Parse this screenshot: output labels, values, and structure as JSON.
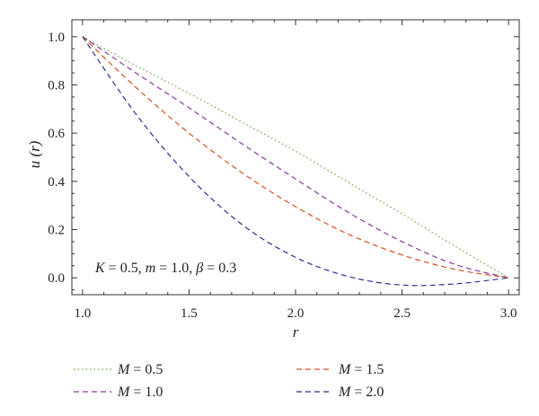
{
  "chart_data": {
    "type": "line",
    "xlabel": "r",
    "ylabel": "u (r)",
    "xlim": [
      0.95,
      3.05
    ],
    "ylim": [
      -0.07,
      1.07
    ],
    "xticks": [
      "1.0",
      "1.5",
      "2.0",
      "2.5",
      "3.0"
    ],
    "yticks": [
      "0.0",
      "0.2",
      "0.4",
      "0.6",
      "0.8",
      "1.0"
    ],
    "grid": false,
    "legend_placement": "bottom",
    "annotation": {
      "K_symbol": "K",
      "K_value": " = 0.5, ",
      "m_symbol": "m",
      "m_value": " = 1.0, ",
      "beta_symbol": "β",
      "beta_value": " = 0.3"
    },
    "series": [
      {
        "name": "M = 0.5",
        "symbol": "M",
        "value_label": " = 0.5",
        "color": "#6aaa3a",
        "dash": "dotted",
        "x": [
          1.0,
          1.25,
          1.5,
          1.75,
          2.0,
          2.25,
          2.5,
          2.75,
          3.0
        ],
        "y": [
          1.0,
          0.88,
          0.765,
          0.645,
          0.525,
          0.395,
          0.265,
          0.13,
          0.0
        ]
      },
      {
        "name": "M = 1.0",
        "symbol": "M",
        "value_label": " = 1.0",
        "color": "#8b3a9e",
        "dash": "dashed",
        "x": [
          1.0,
          1.25,
          1.5,
          1.75,
          2.0,
          2.25,
          2.5,
          2.75,
          3.0
        ],
        "y": [
          1.0,
          0.85,
          0.705,
          0.555,
          0.41,
          0.27,
          0.15,
          0.055,
          0.0
        ]
      },
      {
        "name": "M = 1.5",
        "symbol": "M",
        "value_label": " = 1.5",
        "color": "#d4501e",
        "dash": "dashed",
        "x": [
          1.0,
          1.25,
          1.5,
          1.75,
          2.0,
          2.25,
          2.5,
          2.75,
          3.0
        ],
        "y": [
          1.0,
          0.79,
          0.6,
          0.435,
          0.295,
          0.18,
          0.095,
          0.035,
          0.0
        ]
      },
      {
        "name": "M = 2.0",
        "symbol": "M",
        "value_label": " = 2.0",
        "color": "#2b2f8f",
        "dash": "dashed",
        "x": [
          1.0,
          1.25,
          1.5,
          1.75,
          2.0,
          2.25,
          2.5,
          2.75,
          3.0
        ],
        "y": [
          1.0,
          0.68,
          0.42,
          0.22,
          0.085,
          0.005,
          -0.03,
          -0.025,
          0.0
        ]
      }
    ]
  }
}
